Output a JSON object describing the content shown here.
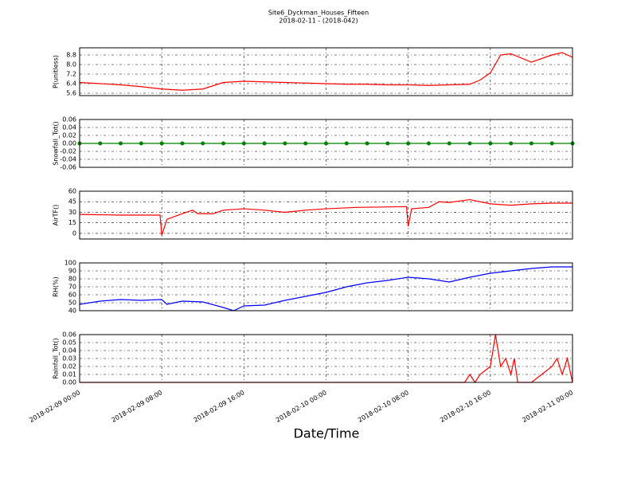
{
  "chart_data": [
    {
      "type": "line",
      "title": "Site6_Dyckman_Houses_Fifteen",
      "subtitle": "2018-02-11 - (2018-042)",
      "y_label": "P(unitless)",
      "color": "#ff0000",
      "grid": true,
      "xlim": [
        "2018-02-09 00:00",
        "2018-02-11 00:00"
      ],
      "x": [
        "2018-02-09 00:00",
        "2018-02-09 02:00",
        "2018-02-09 04:00",
        "2018-02-09 06:00",
        "2018-02-09 08:00",
        "2018-02-09 10:00",
        "2018-02-09 12:00",
        "2018-02-09 14:00",
        "2018-02-09 16:00",
        "2018-02-09 18:00",
        "2018-02-09 20:00",
        "2018-02-09 22:00",
        "2018-02-10 00:00",
        "2018-02-10 02:00",
        "2018-02-10 04:00",
        "2018-02-10 06:00",
        "2018-02-10 08:00",
        "2018-02-10 10:00",
        "2018-02-10 12:00",
        "2018-02-10 14:00",
        "2018-02-10 15:00",
        "2018-02-10 16:00",
        "2018-02-10 17:00",
        "2018-02-10 18:00",
        "2018-02-10 20:00",
        "2018-02-10 22:00",
        "2018-02-10 23:00",
        "2018-02-11 00:00"
      ],
      "values": [
        6.5,
        6.4,
        6.3,
        6.15,
        5.95,
        5.85,
        5.95,
        6.5,
        6.6,
        6.55,
        6.5,
        6.45,
        6.4,
        6.35,
        6.35,
        6.3,
        6.3,
        6.25,
        6.3,
        6.35,
        6.7,
        7.3,
        8.8,
        8.9,
        8.2,
        8.8,
        9.0,
        8.6
      ],
      "ylim": [
        5.4,
        9.4
      ],
      "yticks": [
        5.6,
        6.4,
        7.2,
        {
          "value": 8,
          "label": "8.0"
        },
        8.8
      ]
    },
    {
      "type": "line",
      "y_label": "Snowfall_Tot()",
      "color": "#008000",
      "marker": "o",
      "grid": true,
      "xlim": [
        "2018-02-09 00:00",
        "2018-02-11 00:00"
      ],
      "x": [
        "2018-02-09 00:00",
        "2018-02-09 02:00",
        "2018-02-09 04:00",
        "2018-02-09 06:00",
        "2018-02-09 08:00",
        "2018-02-09 10:00",
        "2018-02-09 12:00",
        "2018-02-09 14:00",
        "2018-02-09 16:00",
        "2018-02-09 18:00",
        "2018-02-09 20:00",
        "2018-02-09 22:00",
        "2018-02-10 00:00",
        "2018-02-10 02:00",
        "2018-02-10 04:00",
        "2018-02-10 06:00",
        "2018-02-10 08:00",
        "2018-02-10 10:00",
        "2018-02-10 12:00",
        "2018-02-10 14:00",
        "2018-02-10 16:00",
        "2018-02-10 18:00",
        "2018-02-10 20:00",
        "2018-02-10 22:00",
        "2018-02-11 00:00"
      ],
      "values": [
        0,
        0,
        0,
        0,
        0,
        0,
        0,
        0,
        0,
        0,
        0,
        0,
        0,
        0,
        0,
        0,
        0,
        0,
        0,
        0,
        0,
        0,
        0,
        0,
        0
      ],
      "ylim": [
        -0.06,
        0.06
      ],
      "yticks": [
        -0.06,
        -0.04,
        -0.02,
        {
          "value": 0,
          "label": "0.00"
        },
        0.02,
        0.04,
        0.06
      ]
    },
    {
      "type": "line",
      "y_label": "AirTF()",
      "color": "#ff0000",
      "grid": true,
      "xlim": [
        "2018-02-09 00:00",
        "2018-02-11 00:00"
      ],
      "x": [
        "2018-02-09 00:00",
        "2018-02-09 04:00",
        "2018-02-09 07:50",
        "2018-02-09 08:00",
        "2018-02-09 08:30",
        "2018-02-09 10:00",
        "2018-02-09 11:00",
        "2018-02-09 11:30",
        "2018-02-09 13:00",
        "2018-02-09 14:00",
        "2018-02-09 16:00",
        "2018-02-09 18:00",
        "2018-02-09 20:00",
        "2018-02-09 22:00",
        "2018-02-10 00:00",
        "2018-02-10 03:00",
        "2018-02-10 07:50",
        "2018-02-10 08:00",
        "2018-02-10 08:20",
        "2018-02-10 10:00",
        "2018-02-10 11:00",
        "2018-02-10 12:00",
        "2018-02-10 14:00",
        "2018-02-10 16:00",
        "2018-02-10 18:00",
        "2018-02-10 20:00",
        "2018-02-10 22:00",
        "2018-02-11 00:00"
      ],
      "values": [
        27,
        26,
        26,
        -3,
        20,
        28,
        33,
        28,
        28,
        33,
        35,
        33,
        30,
        33,
        35,
        37,
        38,
        10,
        35,
        37,
        45,
        44,
        48,
        42,
        40,
        42,
        43,
        43
      ],
      "ylim": [
        -8,
        60
      ],
      "yticks": [
        0,
        15,
        30,
        45,
        60
      ]
    },
    {
      "type": "line",
      "y_label": "RH(%)",
      "color": "#0000ff",
      "grid": true,
      "xlim": [
        "2018-02-09 00:00",
        "2018-02-11 00:00"
      ],
      "x": [
        "2018-02-09 00:00",
        "2018-02-09 02:00",
        "2018-02-09 04:00",
        "2018-02-09 06:00",
        "2018-02-09 08:00",
        "2018-02-09 08:30",
        "2018-02-09 10:00",
        "2018-02-09 12:00",
        "2018-02-09 14:00",
        "2018-02-09 15:00",
        "2018-02-09 16:00",
        "2018-02-09 18:00",
        "2018-02-09 20:00",
        "2018-02-09 22:00",
        "2018-02-10 00:00",
        "2018-02-10 02:00",
        "2018-02-10 04:00",
        "2018-02-10 06:00",
        "2018-02-10 08:00",
        "2018-02-10 10:00",
        "2018-02-10 12:00",
        "2018-02-10 14:00",
        "2018-02-10 16:00",
        "2018-02-10 18:00",
        "2018-02-10 20:00",
        "2018-02-10 22:00",
        "2018-02-11 00:00"
      ],
      "values": [
        48,
        52,
        54,
        53,
        54,
        48,
        52,
        51,
        44,
        40,
        46,
        47,
        53,
        58,
        63,
        70,
        75,
        78,
        82,
        80,
        76,
        82,
        87,
        90,
        93,
        95,
        95
      ],
      "ylim": [
        40,
        100
      ],
      "yticks": [
        40,
        50,
        60,
        70,
        80,
        90,
        100
      ]
    },
    {
      "type": "line",
      "y_label": "Rainfall_Tot()",
      "x_label": "Date/Time",
      "color": "#ff0000",
      "grid": true,
      "xlim": [
        "2018-02-09 00:00",
        "2018-02-11 00:00"
      ],
      "xticks": [
        "2018-02-09 00:00",
        "2018-02-09 08:00",
        "2018-02-09 16:00",
        "2018-02-10 00:00",
        "2018-02-10 08:00",
        "2018-02-10 16:00",
        "2018-02-11 00:00"
      ],
      "x": [
        "2018-02-09 00:00",
        "2018-02-10 13:30",
        "2018-02-10 14:00",
        "2018-02-10 14:30",
        "2018-02-10 15:00",
        "2018-02-10 16:00",
        "2018-02-10 16:30",
        "2018-02-10 17:00",
        "2018-02-10 17:30",
        "2018-02-10 18:00",
        "2018-02-10 18:20",
        "2018-02-10 18:40",
        "2018-02-10 20:00",
        "2018-02-10 21:00",
        "2018-02-10 22:00",
        "2018-02-10 22:30",
        "2018-02-10 23:00",
        "2018-02-10 23:30",
        "2018-02-11 00:00"
      ],
      "values": [
        0,
        0,
        0.01,
        0,
        0.01,
        0.02,
        0.06,
        0.02,
        0.03,
        0.01,
        0.03,
        0,
        0,
        0.01,
        0.02,
        0.03,
        0.01,
        0.03,
        0
      ],
      "ylim": [
        0,
        0.06
      ],
      "yticks": [
        {
          "value": 0,
          "label": "0.00"
        },
        0.01,
        0.02,
        0.03,
        0.04,
        0.05,
        0.06
      ]
    }
  ]
}
